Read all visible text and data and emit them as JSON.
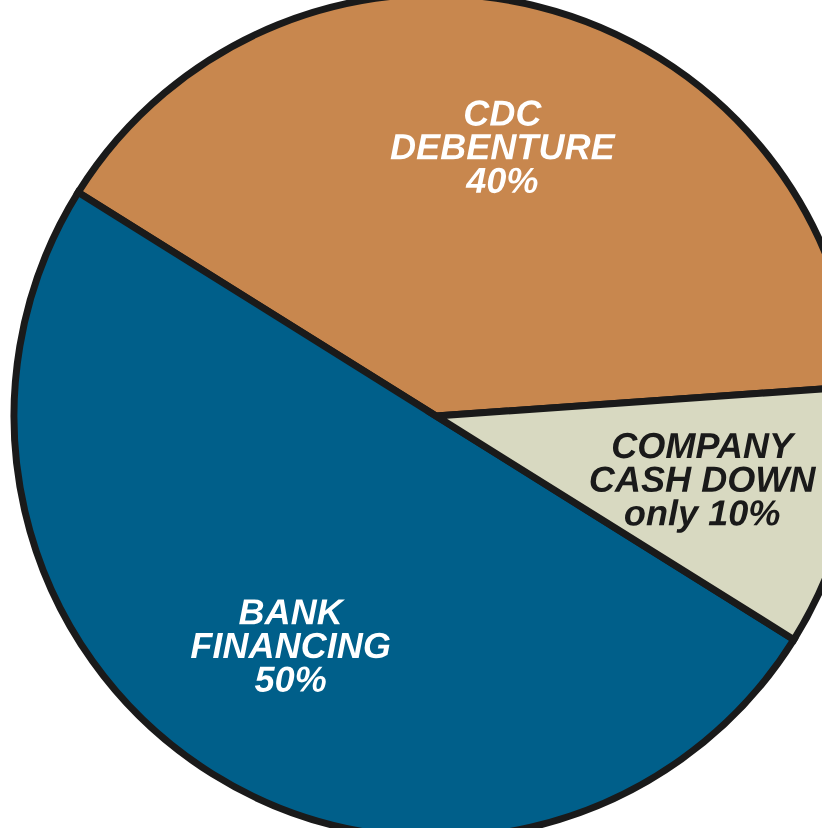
{
  "chart_data": {
    "type": "pie",
    "categories": [
      "CDC\nDEBENTURE",
      "BANK\nFINANCING",
      "COMPANY\nCASH DOWN"
    ],
    "values": [
      40,
      50,
      10
    ],
    "value_labels": [
      "40%",
      "50%",
      "only 10%"
    ],
    "colors": [
      "#c8874e",
      "#005f8a",
      "#d8d9c1"
    ],
    "legend": false
  }
}
